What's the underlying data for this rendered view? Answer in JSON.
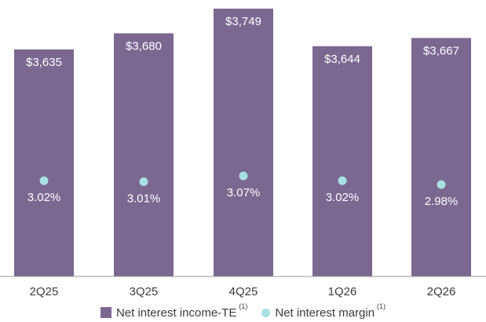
{
  "chart_data": {
    "type": "bar",
    "categories": [
      "2Q25",
      "3Q25",
      "4Q25",
      "1Q26",
      "2Q26"
    ],
    "series": [
      {
        "name": "Net interest income-TE",
        "type": "bar",
        "values": [
          3635,
          3680,
          3749,
          3644,
          3667
        ],
        "labels": [
          "$3,635",
          "$3,680",
          "$3,749",
          "$3,644",
          "$3,667"
        ],
        "color": "#7a6891"
      },
      {
        "name": "Net interest margin",
        "type": "scatter",
        "values": [
          3.02,
          3.01,
          3.07,
          3.02,
          2.98
        ],
        "labels": [
          "3.02%",
          "3.01%",
          "3.07%",
          "3.02%",
          "2.98%"
        ],
        "color": "#a8e0e4"
      }
    ],
    "legend": {
      "position": "bottom",
      "items": [
        {
          "label": "Net interest income-TE",
          "footnote": "(1)"
        },
        {
          "label": "Net interest margin",
          "footnote": "(1)"
        }
      ]
    },
    "grid": false
  }
}
